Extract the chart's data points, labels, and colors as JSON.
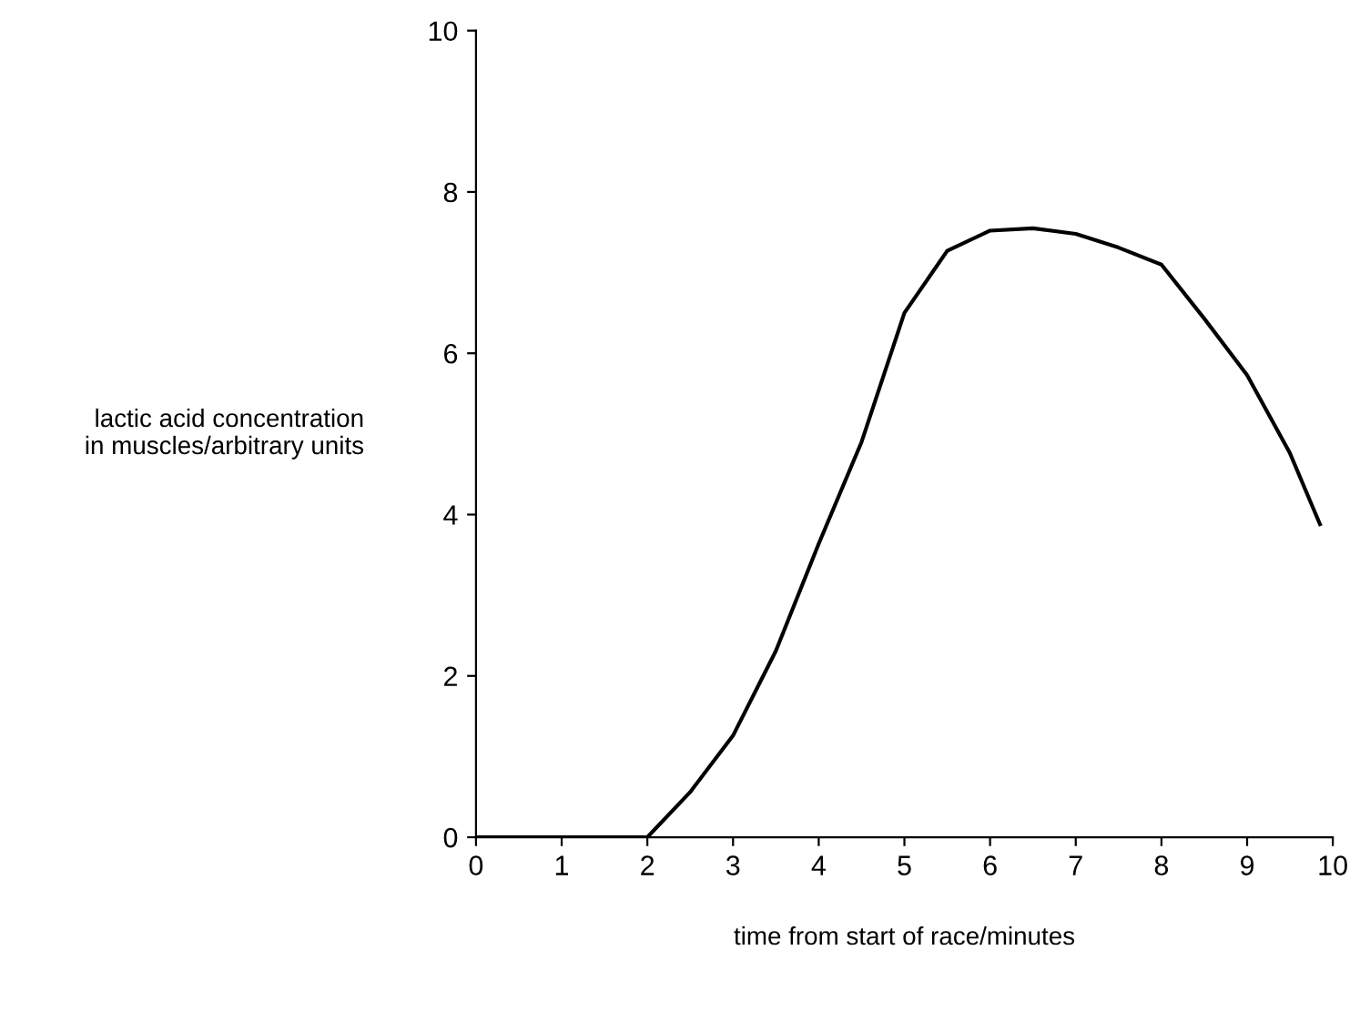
{
  "chart_data": {
    "type": "line",
    "xlabel": "time from start of race/minutes",
    "ylabel": "lactic acid concentration\nin muscles/arbitrary units",
    "x": [
      0,
      1,
      2,
      2.5,
      3,
      3.5,
      4,
      4.5,
      5,
      5.5,
      6,
      6.5,
      7,
      7.5,
      8,
      8.5,
      9,
      9.5,
      9.85
    ],
    "series": [
      {
        "color": "#000000",
        "values": [
          0,
          0,
          0,
          0.56,
          1.26,
          2.31,
          3.64,
          4.9,
          6.5,
          7.27,
          7.52,
          7.55,
          7.48,
          7.31,
          7.1,
          6.43,
          5.73,
          4.76,
          3.88
        ]
      }
    ],
    "xlim": [
      0,
      10
    ],
    "ylim": [
      0,
      10
    ],
    "xticks": [
      0,
      1,
      2,
      3,
      4,
      5,
      6,
      7,
      8,
      9,
      10
    ],
    "yticks": [
      0,
      2,
      4,
      6,
      8,
      10
    ],
    "grid": false,
    "legend": false,
    "marker": "none",
    "line_style": "solid"
  }
}
